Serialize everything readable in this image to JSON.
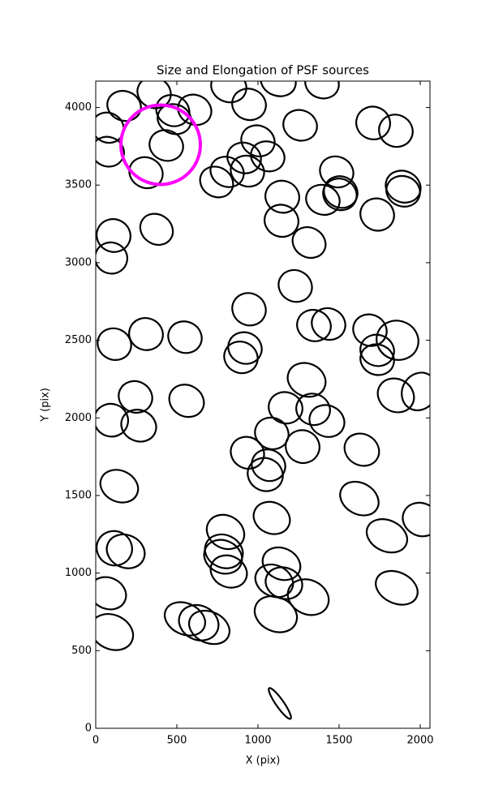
{
  "chart_data": {
    "type": "ellipse",
    "title": "Size and Elongation of PSF sources",
    "xlabel": "X (pix)",
    "ylabel": "Y (pix)",
    "xlim": [
      0,
      2060
    ],
    "ylim": [
      0,
      4170
    ],
    "xticks": [
      0,
      500,
      1000,
      1500,
      2000
    ],
    "yticks": [
      0,
      500,
      1000,
      1500,
      2000,
      2500,
      3000,
      3500,
      4000
    ],
    "grid": false,
    "color": "#000000",
    "x": [
      175,
      360,
      475,
      610,
      820,
      945,
      1125,
      1395,
      75,
      75,
      435,
      485,
      310,
      1000,
      915,
      1060,
      810,
      745,
      935,
      1260,
      1710,
      1850,
      1485,
      1510,
      1505,
      1895,
      1895,
      1150,
      1145,
      1400,
      1735,
      1315,
      375,
      110,
      95,
      1230,
      945,
      1345,
      1435,
      1690,
      1860,
      1735,
      1735,
      920,
      895,
      310,
      550,
      115,
      245,
      560,
      1300,
      1850,
      1995,
      1170,
      1340,
      1425,
      95,
      265,
      1085,
      935,
      1275,
      1640,
      1065,
      1045,
      145,
      1625,
      2005,
      1085,
      1795,
      800,
      790,
      785,
      820,
      115,
      185,
      1145,
      1100,
      1160,
      1310,
      1855,
      75,
      100,
      550,
      635,
      700,
      1110,
      1135
    ],
    "y": [
      4010,
      4095,
      3980,
      3985,
      4135,
      4020,
      4170,
      4155,
      3870,
      3715,
      3755,
      3925,
      3580,
      3785,
      3675,
      3685,
      3585,
      3520,
      3590,
      3885,
      3900,
      3850,
      3585,
      3455,
      3440,
      3490,
      3460,
      3425,
      3270,
      3405,
      3310,
      3130,
      3215,
      3175,
      3030,
      2850,
      2700,
      2595,
      2605,
      2565,
      2500,
      2435,
      2375,
      2450,
      2390,
      2540,
      2520,
      2475,
      2135,
      2110,
      2245,
      2145,
      2170,
      2065,
      2055,
      1980,
      1985,
      1950,
      1900,
      1775,
      1815,
      1795,
      1695,
      1635,
      1560,
      1480,
      1345,
      1355,
      1240,
      1265,
      1140,
      1105,
      1010,
      1160,
      1140,
      1060,
      950,
      935,
      845,
      905,
      870,
      620,
      705,
      680,
      650,
      735,
      160
    ],
    "width": [
      210,
      210,
      210,
      210,
      220,
      210,
      220,
      210,
      200,
      200,
      210,
      210,
      210,
      210,
      210,
      210,
      210,
      210,
      210,
      210,
      210,
      210,
      210,
      210,
      210,
      220,
      210,
      210,
      210,
      210,
      210,
      210,
      210,
      210,
      200,
      210,
      210,
      210,
      210,
      210,
      260,
      210,
      210,
      210,
      210,
      210,
      210,
      210,
      210,
      220,
      240,
      230,
      210,
      210,
      210,
      220,
      210,
      220,
      210,
      210,
      210,
      220,
      210,
      220,
      240,
      250,
      230,
      230,
      260,
      240,
      240,
      240,
      230,
      220,
      240,
      240,
      240,
      230,
      260,
      270,
      230,
      270,
      260,
      250,
      260,
      270,
      230
    ],
    "height": [
      190,
      195,
      195,
      190,
      200,
      200,
      190,
      190,
      190,
      190,
      195,
      190,
      195,
      195,
      195,
      190,
      190,
      190,
      195,
      195,
      210,
      205,
      195,
      200,
      200,
      200,
      195,
      205,
      205,
      190,
      205,
      190,
      190,
      210,
      200,
      200,
      205,
      200,
      200,
      200,
      250,
      200,
      195,
      200,
      200,
      205,
      200,
      200,
      200,
      200,
      210,
      210,
      250,
      200,
      200,
      200,
      210,
      200,
      200,
      200,
      210,
      200,
      200,
      210,
      200,
      200,
      210,
      200,
      200,
      210,
      210,
      210,
      200,
      220,
      210,
      200,
      200,
      200,
      220,
      200,
      200,
      220,
      200,
      220,
      200,
      220,
      50
    ],
    "angle": [
      -20,
      -25,
      -30,
      -25,
      -20,
      -20,
      -20,
      -20,
      -30,
      -20,
      -20,
      -20,
      -25,
      -25,
      -20,
      -20,
      -25,
      -30,
      -25,
      -20,
      -20,
      -25,
      -25,
      -25,
      -25,
      -25,
      -20,
      -20,
      -20,
      -20,
      -25,
      -30,
      -35,
      -25,
      -20,
      -30,
      -30,
      -20,
      -25,
      -25,
      -20,
      -20,
      -20,
      -25,
      -25,
      -20,
      -25,
      -25,
      -25,
      -30,
      -25,
      -30,
      -30,
      -20,
      -20,
      -25,
      -20,
      -25,
      -25,
      -30,
      -25,
      -30,
      -25,
      -25,
      -25,
      -30,
      -25,
      -25,
      -25,
      -30,
      -25,
      -25,
      -25,
      -25,
      -25,
      -25,
      -25,
      -20,
      -25,
      -25,
      -25,
      -25,
      -25,
      -25,
      -25,
      -25,
      -55
    ],
    "highlight": {
      "x": 400,
      "y": 3760,
      "radius": 245,
      "color": "#ff00ff"
    }
  }
}
